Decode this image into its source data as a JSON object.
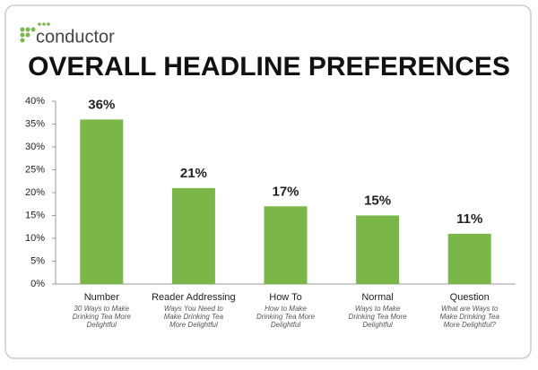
{
  "brand": "conductor",
  "chart_data": {
    "type": "bar",
    "title": "OVERALL HEADLINE PREFERENCES",
    "categories": [
      "Number",
      "Reader Addressing",
      "How To",
      "Normal",
      "Question"
    ],
    "category_notes": [
      [
        "30 Ways to Make",
        "Drinking Tea More",
        "Delightful"
      ],
      [
        "Ways You Need to",
        "Make Drinking Tea",
        "More Delightful"
      ],
      [
        "How to Make",
        "Drinking Tea More",
        "Delightful"
      ],
      [
        "Ways to Make",
        "Drinking Tea More",
        "Delightful"
      ],
      [
        "What are Ways to",
        "Make Drinking Tea",
        "More Delightful?"
      ]
    ],
    "values": [
      36,
      21,
      17,
      15,
      11
    ],
    "value_labels": [
      "36%",
      "21%",
      "17%",
      "15%",
      "11%"
    ],
    "color": "#7ab648",
    "ylim": [
      0,
      40
    ],
    "yticks": [
      {
        "value": 0,
        "label": "0%"
      },
      {
        "value": 5,
        "label": "5%"
      },
      {
        "value": 10,
        "label": "10%"
      },
      {
        "value": 15,
        "label": "15%"
      },
      {
        "value": 20,
        "label": "20%"
      },
      {
        "value": 25,
        "label": "25%"
      },
      {
        "value": 30,
        "label": "30%"
      },
      {
        "value": 35,
        "label": "35%"
      },
      {
        "value": 40,
        "label": "40%"
      }
    ],
    "grid": false
  }
}
